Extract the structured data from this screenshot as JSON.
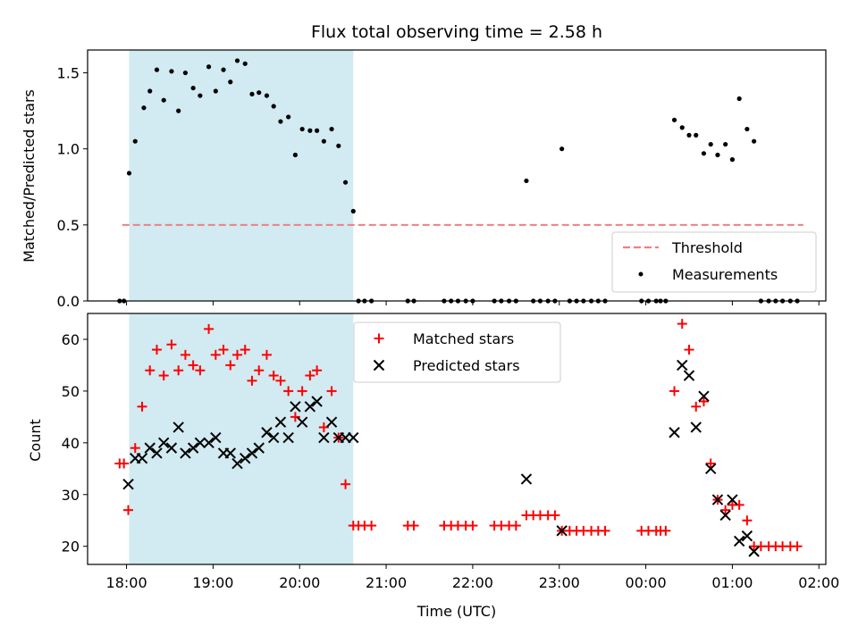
{
  "chart_data": [
    {
      "type": "scatter",
      "title": "Flux total observing time = 2.58 h",
      "ylabel": "Matched/Predicted stars",
      "xlabel": "",
      "ylim": [
        0,
        1.65
      ],
      "y_ticks": [
        "0.0",
        "0.5",
        "1.0",
        "1.5"
      ],
      "y_tick_values": [
        0,
        0.5,
        1.0,
        1.5
      ],
      "grid": false,
      "legend_position": "bottom-right",
      "highlight_span": [
        18.03,
        20.62
      ],
      "threshold": {
        "name": "Threshold",
        "y": 0.5,
        "x_range": [
          17.95,
          25.82
        ],
        "color": "#f08080"
      },
      "measurements": {
        "name": "Measurements",
        "color": "#000000",
        "x": [
          17.92,
          17.97,
          18.03,
          18.1,
          18.2,
          18.27,
          18.35,
          18.43,
          18.52,
          18.6,
          18.68,
          18.77,
          18.85,
          18.95,
          19.03,
          19.12,
          19.2,
          19.28,
          19.37,
          19.45,
          19.53,
          19.62,
          19.7,
          19.78,
          19.87,
          19.95,
          20.03,
          20.12,
          20.2,
          20.28,
          20.37,
          20.45,
          20.53,
          20.62,
          20.68,
          20.75,
          20.83,
          21.25,
          21.32,
          21.67,
          21.75,
          21.83,
          21.92,
          22.0,
          22.25,
          22.33,
          22.42,
          22.5,
          22.62,
          22.7,
          22.78,
          22.87,
          22.95,
          23.03,
          23.12,
          23.2,
          23.28,
          23.37,
          23.45,
          23.53,
          23.95,
          24.03,
          24.12,
          24.17,
          24.23,
          24.33,
          24.42,
          24.5,
          24.58,
          24.67,
          24.75,
          24.83,
          24.92,
          25.0,
          25.08,
          25.17,
          25.25,
          25.33,
          25.42,
          25.5,
          25.58,
          25.67,
          25.75
        ],
        "y": [
          0,
          0,
          0.84,
          1.05,
          1.27,
          1.38,
          1.52,
          1.32,
          1.51,
          1.25,
          1.5,
          1.4,
          1.35,
          1.54,
          1.38,
          1.52,
          1.44,
          1.58,
          1.56,
          1.36,
          1.37,
          1.35,
          1.28,
          1.18,
          1.21,
          0.96,
          1.13,
          1.12,
          1.12,
          1.05,
          1.13,
          1.02,
          0.78,
          0.59,
          0,
          0,
          0,
          0,
          0,
          0,
          0,
          0,
          0,
          0,
          0,
          0,
          0,
          0,
          0.79,
          0,
          0,
          0,
          0,
          1.0,
          0,
          0,
          0,
          0,
          0,
          0,
          0,
          0,
          0,
          0,
          0,
          1.19,
          1.14,
          1.09,
          1.09,
          0.97,
          1.03,
          0.96,
          1.03,
          0.93,
          1.33,
          1.13,
          1.05,
          0,
          0,
          0,
          0,
          0,
          0
        ]
      }
    },
    {
      "type": "scatter",
      "title": "",
      "ylabel": "Count",
      "xlabel": "Time (UTC)",
      "ylim": [
        16.5,
        65
      ],
      "y_ticks": [
        "20",
        "30",
        "40",
        "50",
        "60"
      ],
      "y_tick_values": [
        20,
        30,
        40,
        50,
        60
      ],
      "x_ticks": [
        "18:00",
        "19:00",
        "20:00",
        "21:00",
        "22:00",
        "23:00",
        "00:00",
        "01:00",
        "02:00"
      ],
      "x_tick_values": [
        18,
        19,
        20,
        21,
        22,
        23,
        24,
        25,
        26
      ],
      "xlim": [
        17.55,
        26.08
      ],
      "grid": false,
      "legend_position": "top-center",
      "highlight_span": [
        18.03,
        20.62
      ],
      "series": [
        {
          "name": "Matched stars",
          "marker": "plus",
          "color": "#ff0000",
          "x": [
            17.92,
            17.97,
            18.02,
            18.1,
            18.18,
            18.27,
            18.35,
            18.43,
            18.52,
            18.6,
            18.68,
            18.77,
            18.85,
            18.95,
            19.03,
            19.12,
            19.2,
            19.28,
            19.37,
            19.45,
            19.53,
            19.62,
            19.7,
            19.78,
            19.87,
            19.95,
            20.03,
            20.12,
            20.2,
            20.28,
            20.37,
            20.45,
            20.53,
            20.62,
            20.68,
            20.75,
            20.83,
            21.25,
            21.32,
            21.67,
            21.75,
            21.83,
            21.92,
            22.0,
            22.25,
            22.33,
            22.42,
            22.5,
            22.62,
            22.7,
            22.78,
            22.87,
            22.95,
            23.03,
            23.12,
            23.2,
            23.28,
            23.37,
            23.45,
            23.53,
            23.95,
            24.03,
            24.12,
            24.17,
            24.23,
            24.33,
            24.42,
            24.5,
            24.58,
            24.67,
            24.75,
            24.83,
            24.92,
            25.0,
            25.08,
            25.17,
            25.25,
            25.33,
            25.42,
            25.5,
            25.58,
            25.67,
            25.75
          ],
          "y": [
            36,
            36,
            27,
            39,
            47,
            54,
            58,
            53,
            59,
            54,
            57,
            55,
            54,
            62,
            57,
            58,
            55,
            57,
            58,
            52,
            54,
            57,
            53,
            52,
            50,
            45,
            50,
            53,
            54,
            43,
            50,
            41,
            32,
            24,
            24,
            24,
            24,
            24,
            24,
            24,
            24,
            24,
            24,
            24,
            24,
            24,
            24,
            24,
            26,
            26,
            26,
            26,
            26,
            23,
            23,
            23,
            23,
            23,
            23,
            23,
            23,
            23,
            23,
            23,
            23,
            50,
            63,
            58,
            47,
            48,
            36,
            29,
            27,
            28,
            28,
            25,
            20,
            20,
            20,
            20,
            20,
            20,
            20
          ]
        },
        {
          "name": "Predicted stars",
          "marker": "cross",
          "color": "#000000",
          "x": [
            18.02,
            18.1,
            18.18,
            18.27,
            18.35,
            18.43,
            18.52,
            18.6,
            18.68,
            18.77,
            18.85,
            18.95,
            19.03,
            19.12,
            19.2,
            19.28,
            19.37,
            19.45,
            19.53,
            19.62,
            19.7,
            19.78,
            19.87,
            19.95,
            20.03,
            20.12,
            20.2,
            20.28,
            20.37,
            20.45,
            20.53,
            20.62,
            22.62,
            23.03,
            24.33,
            24.42,
            24.5,
            24.58,
            24.67,
            24.75,
            24.83,
            24.92,
            25.0,
            25.08,
            25.17,
            25.25
          ],
          "y": [
            32,
            37,
            37,
            39,
            38,
            40,
            39,
            43,
            38,
            39,
            40,
            40,
            41,
            38,
            38,
            36,
            37,
            38,
            39,
            42,
            41,
            44,
            41,
            47,
            44,
            47,
            48,
            41,
            44,
            41,
            41,
            41,
            33,
            23,
            42,
            55,
            53,
            43,
            49,
            35,
            29,
            26,
            29,
            21,
            22,
            19
          ]
        }
      ]
    }
  ]
}
